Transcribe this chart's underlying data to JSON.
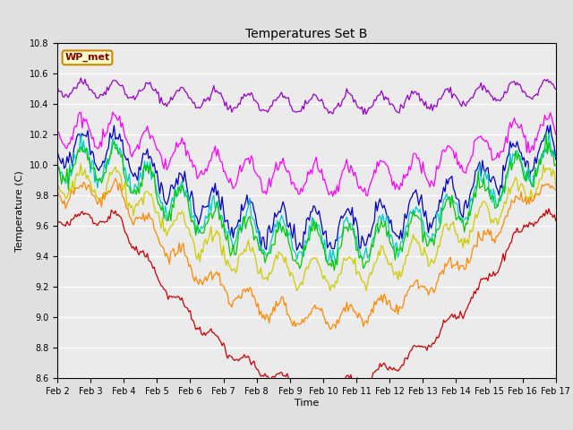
{
  "title": "Temperatures Set B",
  "xlabel": "Time",
  "ylabel": "Temperature (C)",
  "ylim": [
    8.6,
    10.8
  ],
  "xlim": [
    0,
    360
  ],
  "x_tick_labels": [
    "Feb 2",
    "Feb 3",
    "Feb 4",
    "Feb 5",
    "Feb 6",
    "Feb 7",
    "Feb 8",
    "Feb 9",
    "Feb 10",
    "Feb 11",
    "Feb 12",
    "Feb 13",
    "Feb 14",
    "Feb 15",
    "Feb 16",
    "Feb 17"
  ],
  "x_tick_positions": [
    0,
    24,
    48,
    72,
    96,
    120,
    144,
    168,
    192,
    216,
    240,
    264,
    288,
    312,
    336,
    360
  ],
  "y_ticks": [
    8.6,
    8.8,
    9.0,
    9.2,
    9.4,
    9.6,
    9.8,
    10.0,
    10.2,
    10.4,
    10.6,
    10.8
  ],
  "wp_met_box": {
    "text": "WP_met",
    "bg": "#ffffcc",
    "edge": "#cc8800",
    "text_color": "#880000"
  },
  "bg_color": "#e0e0e0",
  "plot_bg": "#ebebeb",
  "grid_color": "#ffffff",
  "legend_colors": {
    "TC_B -32cm": "#9900cc",
    "TC_B -16cm": "#ff00ff",
    "TC_B -8cm": "#0000cc",
    "TC_B -4cm": "#00cccc",
    "TC_B -2cm": "#00cc00",
    "TC_B +4cm": "#cccc00",
    "TC_B +8cm": "#ff8800",
    "TC_B +12cm": "#cc0000"
  },
  "series_params": {
    "TC_B -32cm": {
      "base": 10.5,
      "drop": 0.1,
      "amp": 0.055,
      "noise": 0.012,
      "phase": 3.14
    },
    "TC_B -16cm": {
      "base": 10.22,
      "drop": 0.32,
      "amp": 0.095,
      "noise": 0.022,
      "phase": 3.14
    },
    "TC_B -8cm": {
      "base": 10.1,
      "drop": 0.52,
      "amp": 0.12,
      "noise": 0.028,
      "phase": 3.14
    },
    "TC_B -4cm": {
      "base": 10.02,
      "drop": 0.52,
      "amp": 0.12,
      "noise": 0.028,
      "phase": 3.14
    },
    "TC_B -2cm": {
      "base": 10.0,
      "drop": 0.54,
      "amp": 0.115,
      "noise": 0.025,
      "phase": 3.14
    },
    "TC_B +4cm": {
      "base": 9.88,
      "drop": 0.58,
      "amp": 0.095,
      "noise": 0.022,
      "phase": 3.14
    },
    "TC_B +8cm": {
      "base": 9.82,
      "drop": 0.82,
      "amp": 0.065,
      "noise": 0.018,
      "phase": 3.14
    },
    "TC_B +12cm": {
      "base": 9.65,
      "drop": 1.1,
      "amp": 0.04,
      "noise": 0.012,
      "phase": 3.14
    }
  }
}
